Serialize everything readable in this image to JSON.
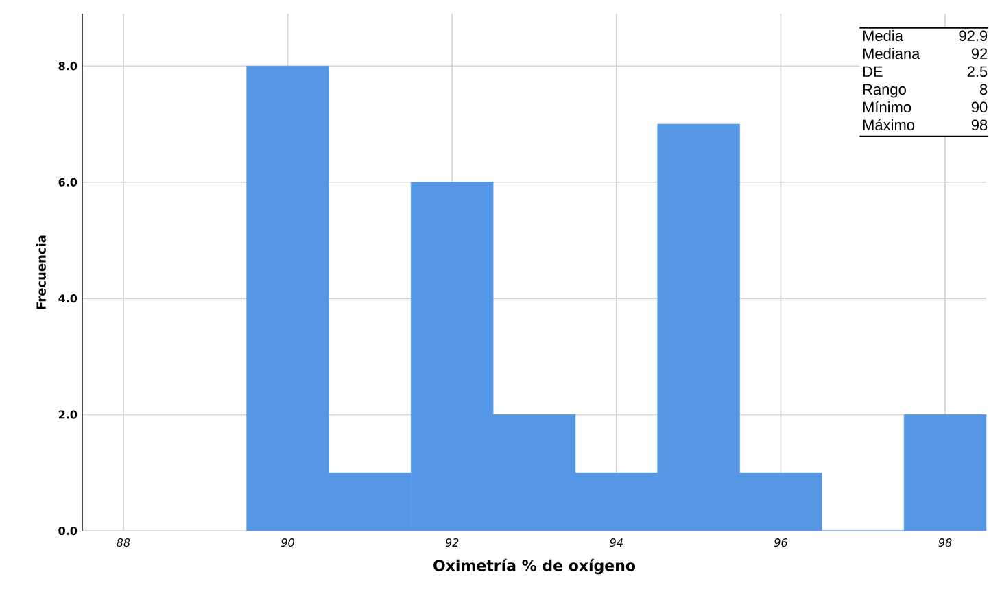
{
  "chart_data": {
    "type": "histogram",
    "xlabel": "Oximetría % de oxígeno",
    "ylabel": "Frecuencia",
    "bins": [
      89.5,
      90.5,
      91.5,
      92.5,
      93.5,
      94.5,
      95.5,
      96.5,
      97.5,
      98.5
    ],
    "values": [
      8,
      1,
      6,
      2,
      1,
      7,
      1,
      0,
      2
    ],
    "color": "#5596e5",
    "xlim": [
      87.5,
      98.5
    ],
    "ylim": [
      0,
      8.9
    ],
    "xticks": [
      88,
      90,
      92,
      94,
      96,
      98
    ],
    "yticks": [
      {
        "value": 0,
        "label": "0.0"
      },
      {
        "value": 2,
        "label": "2.0"
      },
      {
        "value": 4,
        "label": "4.0"
      },
      {
        "value": 6,
        "label": "6.0"
      },
      {
        "value": 8,
        "label": "8.0"
      }
    ],
    "grid": true,
    "annotations": [
      "Media",
      "92.9",
      "Mediana",
      "92",
      "DE",
      "2.5",
      "Rango",
      "8",
      "Mínimo",
      "90",
      "Máximo",
      "98"
    ]
  }
}
